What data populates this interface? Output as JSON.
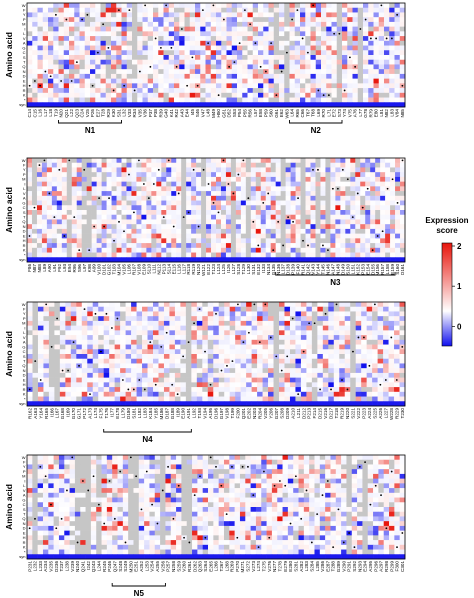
{
  "chart_data": [
    {
      "type": "heatmap",
      "ylabel": "Amino acid",
      "rows": 22,
      "x_tick_labels": [
        "C14",
        "C15",
        "L16",
        "L17",
        "L18",
        "T19",
        "N20",
        "Q21",
        "L22",
        "Q23",
        "C24",
        "V25",
        "P26",
        "E27",
        "T28",
        "R29",
        "K30",
        "S31",
        "L32",
        "V33",
        "R34",
        "V35",
        "V36",
        "P37",
        "P38",
        "R39",
        "G40",
        "K41",
        "R42",
        "A43",
        "E44",
        "I45",
        "S46",
        "V47",
        "L48",
        "M49",
        "H50",
        "G51",
        "D52",
        "S53",
        "P54",
        "P55",
        "R56",
        "L57",
        "E58",
        "P59",
        "S60",
        "G61",
        "E62",
        "W63",
        "L64",
        "R65",
        "C66",
        "T67",
        "T68",
        "L69",
        "R70",
        "L71",
        "E72",
        "S73",
        "Y74",
        "V75",
        "A76",
        "L77",
        "G78",
        "R79",
        "E80",
        "L81",
        "N82",
        "L83",
        "V84",
        "N85"
      ],
      "brackets": [
        {
          "label": "N1"
        },
        {
          "label": "N2"
        }
      ]
    },
    {
      "type": "heatmap",
      "ylabel": "Amino acid",
      "rows": 22,
      "x_tick_labels": [
        "F86",
        "N87",
        "N88",
        "L89",
        "A90",
        "L91",
        "F92",
        "L93",
        "E94",
        "R95",
        "S96",
        "L97",
        "K98",
        "A99",
        "V100",
        "D101",
        "G102",
        "T103",
        "M104",
        "V105",
        "L106",
        "R107",
        "V108",
        "E109",
        "S110",
        "L111",
        "N112",
        "P113",
        "S114",
        "E115",
        "L116",
        "L117",
        "R118",
        "R119",
        "N120",
        "W121",
        "E122",
        "T123",
        "L124",
        "L125",
        "I126",
        "L127",
        "S128",
        "T129",
        "L130",
        "S131",
        "E132",
        "I133",
        "N134",
        "G135",
        "N136",
        "L137",
        "D138",
        "P139",
        "F140",
        "R141",
        "Q142",
        "V143",
        "Y144",
        "T145",
        "N146",
        "A147",
        "N148",
        "D149",
        "S150",
        "L151",
        "K152",
        "P153",
        "E154",
        "D155",
        "M156",
        "R157",
        "L158",
        "E159",
        "S160",
        "D161"
      ],
      "brackets": [
        {
          "label": "N3"
        }
      ]
    },
    {
      "type": "heatmap",
      "ylabel": "Amino acid",
      "rows": 22,
      "x_tick_labels": [
        "R162",
        "A163",
        "Y164",
        "R165",
        "I166",
        "L167",
        "G168",
        "I169",
        "G170",
        "G171",
        "P172",
        "A173",
        "L174",
        "F175",
        "T176",
        "I177",
        "E178",
        "L179",
        "D180",
        "S181",
        "L182",
        "L183",
        "K184",
        "Y185",
        "M186",
        "D187",
        "G188",
        "I189",
        "E190",
        "A191",
        "L192",
        "T193",
        "V194",
        "A195",
        "D196",
        "G197",
        "V198",
        "T199",
        "F200",
        "Q201",
        "E202",
        "N203",
        "R204",
        "V205",
        "Y206",
        "G207",
        "S208",
        "D209",
        "A210",
        "L211",
        "D212",
        "P213",
        "F214",
        "D215",
        "V216",
        "D217",
        "T218",
        "R219",
        "N220",
        "S221",
        "V222",
        "P223",
        "A224",
        "S225",
        "A226",
        "L227",
        "W228",
        "R229",
        "T230"
      ],
      "brackets": [
        {
          "label": "N4"
        }
      ]
    },
    {
      "type": "heatmap",
      "ylabel": "Amino acid",
      "rows": 22,
      "x_tick_labels": [
        "P231",
        "L232",
        "L233",
        "A234",
        "V235",
        "D236",
        "T237",
        "L238",
        "V239",
        "N240",
        "Q241",
        "I242",
        "Q243",
        "L244",
        "R245",
        "P246",
        "Q247",
        "S248",
        "S249",
        "M250",
        "E251",
        "A252",
        "L253",
        "V254",
        "A255",
        "V256",
        "P257",
        "N258",
        "S259",
        "V260",
        "R261",
        "D262",
        "Q263",
        "S264",
        "E265",
        "L266",
        "T267",
        "L268",
        "R269",
        "P270",
        "M271",
        "S272",
        "V273",
        "L274",
        "T275",
        "V276",
        "N277",
        "T278",
        "E279",
        "E280",
        "S281",
        "A282",
        "L283",
        "S284",
        "L285",
        "V286",
        "E287",
        "T288",
        "G289",
        "V290",
        "P291",
        "S292",
        "N293",
        "E294",
        "A295",
        "P296",
        "A297",
        "R298",
        "P299",
        "F300",
        "C301"
      ],
      "brackets": [
        {
          "label": "N5"
        }
      ]
    }
  ],
  "colorbar": {
    "title_line1": "Expression",
    "title_line2": "score",
    "ticks": [
      2,
      1,
      0
    ],
    "colors": {
      "high": "#e8150c",
      "mid": "#ffffff",
      "low": "#1010ee"
    }
  },
  "missing_color": "#c6c6c6"
}
